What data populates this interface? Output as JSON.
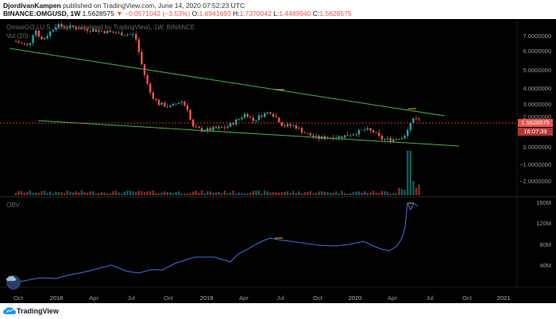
{
  "header": {
    "author": "DjordivanKampen",
    "published_text": "published on TradingView.com, June 14, 2020 07:52:23 UTC",
    "symbol": "BINANCE:OMGUSD, 1W",
    "last_price": "1.5628575",
    "change": "▼ −0.0571042 (−3.53%)",
    "open_label": "O:",
    "open_value": "1.6941693",
    "high_label": "H:",
    "high_value": "1.7370042",
    "low_label": "L:",
    "low_value": "1.4489940",
    "close_label": "C:",
    "close_value": "1.5628575"
  },
  "chart": {
    "price_legend": "OmiseGO / U.S. Dollar (calculated by TradingView), 1W, BINANCE",
    "volume_legend": "Vol (20)",
    "obv_legend": "OBV",
    "price_axis": [
      "7.0000000",
      "6.0000000",
      "5.0000000",
      "4.0000000",
      "3.0000000",
      "2.0000000",
      "0.0000000",
      "−1.0000000",
      "−2.0000000"
    ],
    "price_tag": "1.5628575",
    "countdown_tag": "16:07:39",
    "obv_axis": [
      "160M",
      "120M",
      "80M",
      "40M"
    ],
    "time_axis": [
      "Oct",
      "2018",
      "Apr",
      "Jul",
      "Oct",
      "2019",
      "Apr",
      "Jul",
      "Oct",
      "2020",
      "Apr",
      "Jul",
      "Oct",
      "2021"
    ],
    "colors": {
      "up": "#26a69a",
      "down": "#ef5350",
      "trendline": "#4caf50",
      "obv": "#4a6fd8",
      "price_line": "#ef5350"
    }
  },
  "footer": {
    "brand": "TradingView",
    "logo_icon": "tradingview-logo-icon"
  }
}
